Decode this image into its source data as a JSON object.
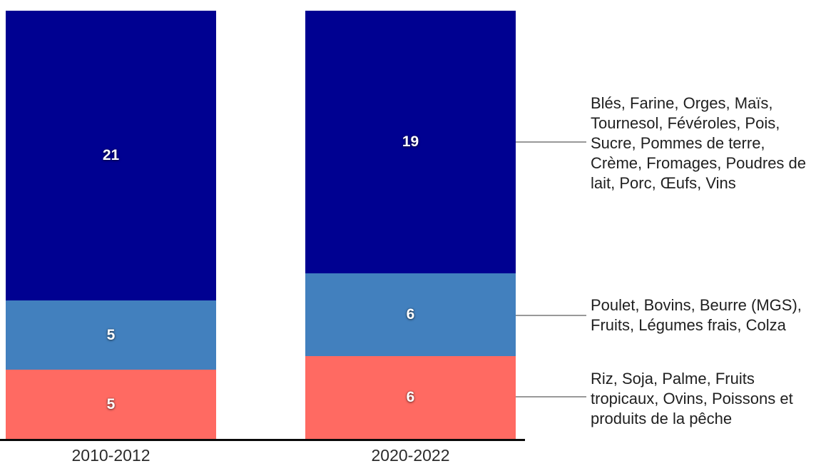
{
  "chart_data": {
    "type": "bar",
    "stacked": true,
    "orientation": "vertical",
    "categories": [
      "2010-2012",
      "2020-2022"
    ],
    "series": [
      {
        "name": "Riz, Soja, Palme, Fruits tropicaux, Ovins, Poissons et produits de la pêche",
        "color": "#ff6a62",
        "values": [
          5,
          6
        ]
      },
      {
        "name": "Poulet, Bovins, Beurre (MGS), Fruits, Légumes frais, Colza",
        "color": "#4280be",
        "values": [
          5,
          6
        ]
      },
      {
        "name": "Blés, Farine, Orges, Maïs, Tournesol, Févéroles, Pois, Sucre, Pommes de terre, Crème, Fromages, Poudres de lait, Porc, Œufs, Vins",
        "color": "#000191",
        "values": [
          21,
          19
        ]
      }
    ],
    "totals": [
      31,
      31
    ],
    "ylim": [
      0,
      31
    ],
    "grid": false,
    "legend_position": "right"
  },
  "legend": {
    "top": "Blés, Farine, Orges, Maïs,\nTournesol, Févéroles, Pois,\nSucre, Pommes de terre,\nCrème, Fromages, Poudres de\nlait, Porc, Œufs, Vins",
    "middle": "Poulet, Bovins, Beurre (MGS),\nFruits, Légumes frais, Colza",
    "bottom": "Riz, Soja, Palme, Fruits\ntropicaux, Ovins, Poissons et\nproduits de la pêche"
  },
  "colors": {
    "segment_top": "#000191",
    "segment_middle": "#4280be",
    "segment_bottom": "#ff6a62",
    "axis_line": "#0a0a0a",
    "connector_line": "#999999",
    "category_text": "#2b2b2b",
    "legend_text": "#1f1f1f",
    "value_text": "#ffffff"
  }
}
